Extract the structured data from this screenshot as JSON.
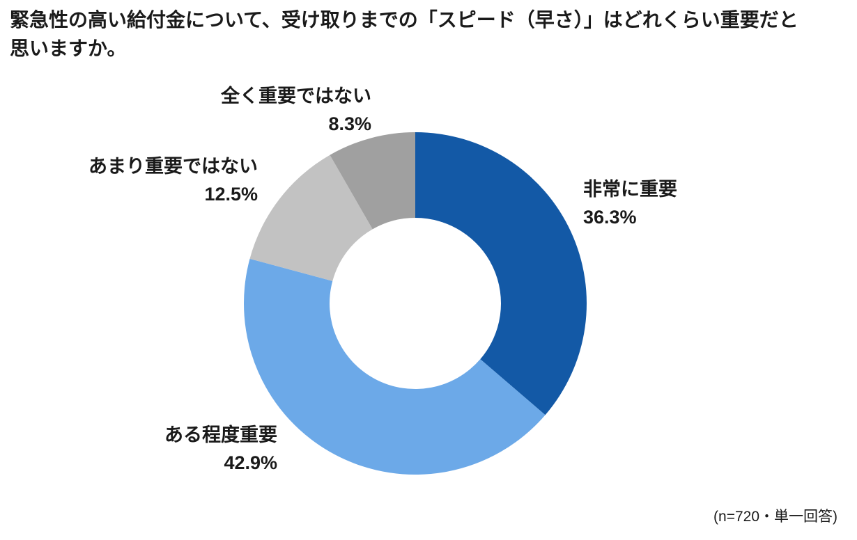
{
  "title": {
    "line1": "緊急性の高い給付金について、受け取りまでの「スピード（早さ）」はどれくらい重要だと",
    "line2": "思いますか。"
  },
  "footer": {
    "note": "(n=720・単一回答)"
  },
  "chart_data": {
    "type": "pie",
    "subtype": "donut",
    "title": "緊急性の高い給付金について、受け取りまでの「スピード（早さ）」はどれくらい重要だと思いますか。",
    "sample_note": "(n=720・単一回答)",
    "start_angle_deg": 0,
    "direction": "clockwise",
    "inner_radius_ratio": 0.5,
    "legend_position": "none",
    "labels_position": "outside",
    "segments": [
      {
        "label": "非常に重要",
        "value": 36.3,
        "display": "36.3%",
        "color": "#1359A6"
      },
      {
        "label": "ある程度重要",
        "value": 42.9,
        "display": "42.9%",
        "color": "#6CA9E8"
      },
      {
        "label": "あまり重要ではない",
        "value": 12.5,
        "display": "12.5%",
        "color": "#C2C2C2"
      },
      {
        "label": "全く重要ではない",
        "value": 8.3,
        "display": "8.3%",
        "color": "#A0A0A0"
      }
    ]
  }
}
